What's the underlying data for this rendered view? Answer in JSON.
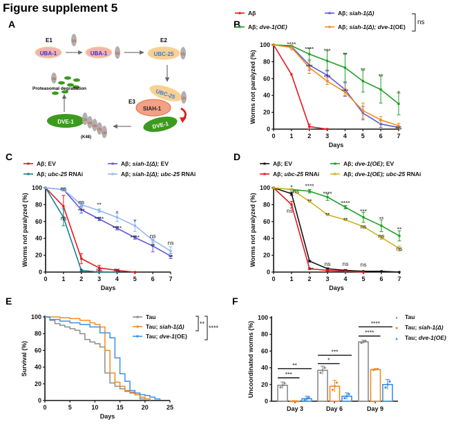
{
  "figure_title": "Figure supplement 5",
  "panel_labels": [
    "A",
    "B",
    "C",
    "D",
    "E",
    "F"
  ],
  "diagram": {
    "e1": "E1",
    "e2": "E2",
    "e3": "E3",
    "uba1": "UBA-1",
    "ubc25": "UBC-25",
    "siah1": "SIAH-1",
    "dve1": "DVE-1",
    "ub": "Ub",
    "k48": "(K48)",
    "degradation": "Proteasomal degradation",
    "colors": {
      "uba": "#f4b3ae",
      "ubc": "#f9cf95",
      "siah": "#f3a184",
      "dve": "#3c9b1e",
      "ub": "#b0b0b0",
      "ub_text": "#d0461a"
    }
  },
  "chart_data": [
    {
      "id": "B",
      "type": "line",
      "xlabel": "Days",
      "ylabel": "Worms not paralyzed (%)",
      "xlim": [
        0,
        7
      ],
      "ylim": [
        0,
        100
      ],
      "xticks": [
        0,
        1,
        2,
        3,
        4,
        5,
        6,
        7
      ],
      "yticks": [
        0,
        20,
        40,
        60,
        80,
        100
      ],
      "series": [
        {
          "name": [
            {
              "t": "Aβ",
              "i": false
            }
          ],
          "color": "#e8141c",
          "x": [
            0,
            1,
            2,
            3
          ],
          "y": [
            100,
            65,
            3,
            0
          ],
          "err": [
            0,
            0,
            3,
            0
          ]
        },
        {
          "name": [
            {
              "t": "Aβ; ",
              "i": false
            },
            {
              "t": "siah-1(Δ)",
              "i": true
            }
          ],
          "color": "#5b57d8",
          "x": [
            0,
            1,
            2,
            3,
            4,
            5,
            6,
            7
          ],
          "y": [
            100,
            98,
            76,
            64,
            47,
            19,
            6,
            2
          ],
          "err": [
            0,
            2,
            6,
            6,
            8,
            8,
            4,
            1
          ]
        },
        {
          "name": [
            {
              "t": "Aβ; ",
              "i": false
            },
            {
              "t": "dve-1(OE)",
              "i": true
            }
          ],
          "color": "#1d9e23",
          "x": [
            0,
            1,
            2,
            3,
            4,
            5,
            6,
            7
          ],
          "y": [
            100,
            99,
            89,
            81,
            73,
            57,
            47,
            30
          ],
          "err": [
            0,
            1,
            7,
            12,
            17,
            13,
            16,
            13
          ]
        },
        {
          "name": [
            {
              "t": "Aβ; ",
              "i": false
            },
            {
              "t": "siah-1(Δ); dve-1",
              "i": true
            },
            {
              "t": "(OE)",
              "i": false
            }
          ],
          "color": "#f28a1e",
          "x": [
            0,
            1,
            2,
            3,
            4,
            5,
            6,
            7
          ],
          "y": [
            100,
            97,
            73,
            57,
            44,
            22,
            11,
            4
          ],
          "err": [
            0,
            3,
            7,
            4,
            4,
            9,
            4,
            3
          ]
        }
      ],
      "bracket_label": "ns",
      "annotations": [
        [
          1,
          101,
          "****"
        ],
        [
          2,
          95,
          "****"
        ],
        [
          3,
          93,
          "***"
        ],
        [
          4,
          88,
          "**"
        ],
        [
          5,
          70,
          "**"
        ],
        [
          6,
          63,
          "**"
        ],
        [
          7,
          43,
          "*"
        ],
        [
          2,
          74,
          "***"
        ],
        [
          3,
          62,
          "***"
        ],
        [
          4,
          45,
          "***"
        ],
        [
          7,
          2,
          "ns"
        ]
      ]
    },
    {
      "id": "C",
      "type": "line",
      "xlabel": "Days",
      "ylabel": "Worms not paralyzed (%)",
      "xlim": [
        0,
        7
      ],
      "ylim": [
        0,
        100
      ],
      "xticks": [
        0,
        1,
        2,
        3,
        4,
        5,
        6,
        7
      ],
      "yticks": [
        0,
        20,
        40,
        60,
        80,
        100
      ],
      "series": [
        {
          "name": [
            {
              "t": "Aβ; EV",
              "i": false
            }
          ],
          "color": "#e8141c",
          "x": [
            0,
            1,
            2,
            3,
            4,
            5
          ],
          "y": [
            100,
            78,
            16,
            5,
            2,
            0
          ],
          "err": [
            0,
            13,
            6,
            3,
            1,
            0
          ]
        },
        {
          "name": [
            {
              "t": "Aβ; ",
              "i": false
            },
            {
              "t": "ubc-25",
              "i": true
            },
            {
              "t": " RNAi",
              "i": false
            }
          ],
          "color": "#167f90",
          "x": [
            0,
            1,
            2,
            3,
            4
          ],
          "y": [
            100,
            65,
            2,
            0,
            0
          ],
          "err": [
            0,
            10,
            1,
            0,
            0
          ]
        },
        {
          "name": [
            {
              "t": "Aβ; ",
              "i": false
            },
            {
              "t": "siah-1(Δ);",
              "i": true
            },
            {
              "t": " EV",
              "i": false
            }
          ],
          "color": "#5b57d8",
          "x": [
            0,
            1,
            2,
            3,
            4,
            5,
            6,
            7
          ],
          "y": [
            100,
            98,
            74,
            63,
            52,
            41,
            31,
            19
          ],
          "err": [
            0,
            1,
            4,
            2,
            2,
            2,
            7,
            3
          ]
        },
        {
          "name": [
            {
              "t": "Aβ; ",
              "i": false
            },
            {
              "t": "siah-1(Δ); ubc-25",
              "i": true
            },
            {
              "t": " RNAi",
              "i": false
            }
          ],
          "color": "#8fb6ef",
          "x": [
            0,
            1,
            2,
            3,
            4,
            5,
            6,
            7
          ],
          "y": [
            100,
            98,
            80,
            73,
            65,
            55,
            38,
            25
          ],
          "err": [
            0,
            2,
            3,
            2,
            5,
            7,
            3,
            5
          ]
        }
      ],
      "annotations": [
        [
          1,
          99,
          "ns"
        ],
        [
          2,
          83,
          "ns"
        ],
        [
          3,
          80,
          "**"
        ],
        [
          4,
          70,
          "*"
        ],
        [
          5,
          60,
          "*"
        ],
        [
          6,
          43,
          "ns"
        ],
        [
          7,
          35,
          "ns"
        ],
        [
          2,
          73,
          "***"
        ],
        [
          3,
          63,
          "****"
        ],
        [
          4,
          52,
          "****"
        ],
        [
          5,
          41,
          "****"
        ],
        [
          6,
          31,
          "**"
        ],
        [
          7,
          18,
          "**"
        ],
        [
          1,
          64,
          "ns"
        ],
        [
          2,
          2,
          "*"
        ],
        [
          3,
          3,
          "ns"
        ],
        [
          4,
          3,
          "ns"
        ]
      ]
    },
    {
      "id": "D",
      "type": "line",
      "xlabel": "Days",
      "ylabel": "Worms not paralyzed (%)",
      "xlim": [
        0,
        7
      ],
      "ylim": [
        0,
        100
      ],
      "xticks": [
        0,
        1,
        2,
        3,
        4,
        5,
        6,
        7
      ],
      "yticks": [
        0,
        20,
        40,
        60,
        80,
        100
      ],
      "series": [
        {
          "name": [
            {
              "t": "Aβ; EV",
              "i": false
            }
          ],
          "color": "#111111",
          "x": [
            0,
            1,
            2,
            3,
            4,
            5,
            6,
            7
          ],
          "y": [
            100,
            93,
            13,
            4,
            2,
            1,
            1,
            0
          ],
          "err": [
            0,
            2,
            1,
            1,
            1,
            0,
            0,
            0
          ]
        },
        {
          "name": [
            {
              "t": "Aβ; ",
              "i": false
            },
            {
              "t": "ubc-25",
              "i": true
            },
            {
              "t": " RNAi",
              "i": false
            }
          ],
          "color": "#e8141c",
          "x": [
            0,
            1,
            2,
            3,
            4,
            5
          ],
          "y": [
            100,
            80,
            4,
            2,
            1,
            0
          ],
          "err": [
            0,
            4,
            1,
            1,
            0,
            0
          ]
        },
        {
          "name": [
            {
              "t": "Aβ; ",
              "i": false
            },
            {
              "t": "dve-1(OE)",
              "i": true
            },
            {
              "t": "; EV",
              "i": false
            }
          ],
          "color": "#1d9e23",
          "x": [
            0,
            1,
            2,
            3,
            4,
            5,
            6,
            7
          ],
          "y": [
            100,
            98,
            96,
            89,
            77,
            65,
            55,
            43
          ],
          "err": [
            0,
            1,
            2,
            4,
            2,
            6,
            7,
            6
          ]
        },
        {
          "name": [
            {
              "t": "Aβ; ",
              "i": false
            },
            {
              "t": "dve-1(OE); ubc-25",
              "i": true
            },
            {
              "t": " RNAi",
              "i": false
            }
          ],
          "color": "#cbb31f",
          "x": [
            0,
            1,
            2,
            3,
            4,
            5,
            6,
            7
          ],
          "y": [
            100,
            98,
            84,
            68,
            62,
            54,
            41,
            28
          ],
          "err": [
            0,
            1,
            1,
            1,
            1,
            1,
            2,
            3
          ]
        }
      ],
      "annotations": [
        [
          1,
          101,
          "*"
        ],
        [
          1.25,
          96,
          "ns"
        ],
        [
          2,
          102,
          "****"
        ],
        [
          3,
          93,
          "****"
        ],
        [
          4,
          82,
          "****"
        ],
        [
          5,
          72,
          "***"
        ],
        [
          6,
          63,
          "**"
        ],
        [
          7,
          51,
          "**"
        ],
        [
          2,
          84,
          "**"
        ],
        [
          3,
          68,
          "**"
        ],
        [
          4,
          62,
          "**"
        ],
        [
          5,
          54,
          "ns"
        ],
        [
          6,
          43,
          "ns"
        ],
        [
          7,
          28,
          "ns"
        ],
        [
          0.9,
          73,
          "ns"
        ],
        [
          2.1,
          3,
          "**"
        ],
        [
          3,
          10,
          "ns"
        ],
        [
          4,
          10,
          "ns"
        ],
        [
          5,
          9,
          "ns"
        ]
      ]
    },
    {
      "id": "E",
      "type": "line",
      "step": true,
      "xlabel": "Days",
      "ylabel": "Survival (%)",
      "xlim": [
        0,
        25
      ],
      "ylim": [
        0,
        100
      ],
      "xticks": [
        0,
        5,
        10,
        15,
        20,
        25
      ],
      "yticks": [
        0,
        20,
        40,
        60,
        80,
        100
      ],
      "series": [
        {
          "name": [
            {
              "t": "Tau",
              "i": false
            }
          ],
          "color": "#8a8a8a",
          "x": [
            0,
            1,
            2,
            3,
            4,
            5,
            6,
            7,
            8,
            9,
            10,
            11,
            12,
            13,
            14,
            15,
            16,
            17,
            18,
            19,
            21
          ],
          "y": [
            100,
            96,
            92,
            90,
            88,
            86,
            84,
            80,
            73,
            70,
            68,
            64,
            33,
            21,
            17,
            14,
            11,
            9,
            7,
            2,
            0
          ]
        },
        {
          "name": [
            {
              "t": "Tau; ",
              "i": false
            },
            {
              "t": "siah-1(Δ)",
              "i": true
            }
          ],
          "color": "#f28a1e",
          "x": [
            0,
            3,
            5,
            7,
            9,
            10,
            11,
            12,
            13,
            14,
            15,
            16,
            17,
            18,
            19,
            20,
            21
          ],
          "y": [
            100,
            99,
            98,
            96,
            93,
            91,
            88,
            60,
            33,
            22,
            17,
            12,
            10,
            7,
            4,
            2,
            0
          ]
        },
        {
          "name": [
            {
              "t": "Tau; ",
              "i": false
            },
            {
              "t": "dve-1",
              "i": true
            },
            {
              "t": "(OE)",
              "i": false
            }
          ],
          "color": "#3a8fe6",
          "x": [
            0,
            1,
            3,
            5,
            7,
            9,
            11,
            13,
            14,
            15,
            16,
            17,
            18,
            19,
            20,
            21,
            22,
            23
          ],
          "y": [
            100,
            97,
            95,
            93,
            91,
            88,
            81,
            75,
            51,
            32,
            23,
            12,
            9,
            7,
            6,
            4,
            2,
            1
          ]
        }
      ],
      "brackets": [
        "**",
        "****"
      ]
    },
    {
      "id": "F",
      "type": "bar",
      "xlabel": "",
      "ylabel": "Uncoordinated worms (%)",
      "ylim": [
        0,
        100
      ],
      "yticks": [
        0,
        20,
        40,
        60,
        80,
        100
      ],
      "categories": [
        "Day 3",
        "Day 6",
        "Day 9"
      ],
      "series": [
        {
          "name": [
            {
              "t": "Tau",
              "i": false
            }
          ],
          "color": "#8a8a8a",
          "values": [
            19,
            37,
            71
          ],
          "err": [
            4,
            5,
            2
          ],
          "marker": "●"
        },
        {
          "name": [
            {
              "t": "Tau; ",
              "i": false
            },
            {
              "t": "siah-1(Δ)",
              "i": true
            }
          ],
          "color": "#f28a1e",
          "values": [
            0,
            18,
            38
          ],
          "err": [
            0,
            7,
            1
          ],
          "marker": "■"
        },
        {
          "name": [
            {
              "t": "Tau; ",
              "i": false
            },
            {
              "t": "dve-1(OE)",
              "i": true
            }
          ],
          "color": "#3a8fe6",
          "values": [
            3,
            6,
            20
          ],
          "err": [
            3,
            4,
            6
          ],
          "marker": "▲"
        }
      ],
      "comparisons": [
        {
          "cat": 0,
          "from": 0,
          "to": 1,
          "y": 28,
          "label": "***"
        },
        {
          "cat": 0,
          "from": 0,
          "to": 2,
          "y": 39,
          "label": "**"
        },
        {
          "cat": 1,
          "from": 0,
          "to": 1,
          "y": 45,
          "label": "*"
        },
        {
          "cat": 1,
          "from": 0,
          "to": 2,
          "y": 55,
          "label": "***"
        },
        {
          "cat": 2,
          "from": 0,
          "to": 1,
          "y": 78,
          "label": "****"
        },
        {
          "cat": 2,
          "from": 0,
          "to": 2,
          "y": 89,
          "label": "****"
        }
      ]
    }
  ]
}
